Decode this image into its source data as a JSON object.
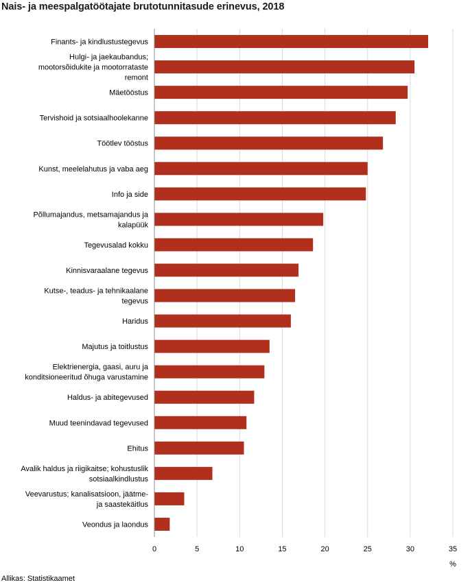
{
  "title": "Nais- ja meespalgatöötajate brutotunnitasude erinevus, 2018",
  "source": "Allikas: Statistikaamet",
  "colors": {
    "bar": "#b0301d",
    "grid": "#d9d9d9",
    "axis": "#8c8c8c"
  },
  "chart_data": {
    "type": "bar",
    "orientation": "horizontal",
    "title": "Nais- ja meespalgatöötajate brutotunnitasude erinevus, 2018",
    "xlabel": "%",
    "xlim": [
      0,
      35
    ],
    "xticks": [
      0,
      5,
      10,
      15,
      20,
      25,
      30,
      35
    ],
    "grid": true,
    "categories": [
      [
        "Finants- ja kindlustustegevus"
      ],
      [
        "Hulgi- ja jaekaubandus;",
        "mootorsõidukite ja mootorrataste",
        "remont"
      ],
      [
        "Mäetööstus"
      ],
      [
        "Tervishoid ja sotsiaalhoolekanne"
      ],
      [
        "Töötlev tööstus"
      ],
      [
        "Kunst, meelelahutus ja vaba aeg"
      ],
      [
        "Info ja side"
      ],
      [
        "Põllumajandus, metsamajandus ja",
        "kalapüük"
      ],
      [
        "Tegevusalad kokku"
      ],
      [
        "Kinnisvaraalane tegevus"
      ],
      [
        "Kutse-, teadus- ja tehnikaalane",
        "tegevus"
      ],
      [
        "Haridus"
      ],
      [
        "Majutus ja toitlustus"
      ],
      [
        "Elektrienergia, gaasi, auru ja",
        "konditsioneeritud õhuga varustamine"
      ],
      [
        "Haldus- ja abitegevused"
      ],
      [
        "Muud teenindavad tegevused"
      ],
      [
        "Ehitus"
      ],
      [
        "Avalik haldus ja riigikaitse; kohustuslik",
        "sotsiaalkindlustus"
      ],
      [
        "Veevarustus; kanalisatsioon, jäätme-",
        "ja saastekäitlus"
      ],
      [
        "Veondus ja laondus"
      ]
    ],
    "values": [
      32.1,
      30.5,
      29.7,
      28.3,
      26.8,
      25.0,
      24.8,
      19.8,
      18.6,
      16.9,
      16.5,
      16.0,
      13.5,
      12.9,
      11.7,
      10.8,
      10.5,
      6.8,
      3.5,
      1.8
    ]
  }
}
